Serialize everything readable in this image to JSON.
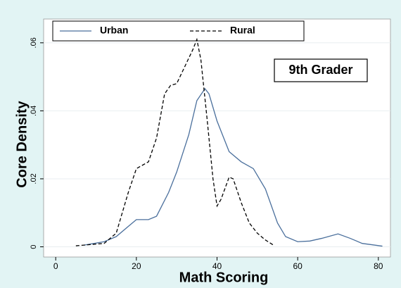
{
  "chart_data": {
    "type": "line",
    "xlabel": "Math Scoring",
    "ylabel": "Core Density",
    "annotation": "9th Grader",
    "xlim": [
      -3,
      83
    ],
    "ylim": [
      -0.003,
      0.067
    ],
    "xticks": [
      0,
      20,
      40,
      60,
      80
    ],
    "yticks": [
      0,
      {
        "value": 0.02,
        "label": ".02"
      },
      {
        "value": 0.04,
        "label": ".04"
      },
      {
        "value": 0.06,
        "label": ".06"
      }
    ],
    "grid": true,
    "legend": "top",
    "series": [
      {
        "name": "Urban",
        "color": "#4a6f9c",
        "dash": false,
        "x": [
          7,
          12,
          15,
          18,
          20,
          23,
          25,
          28,
          30,
          33,
          35,
          37,
          38,
          40,
          43,
          46,
          49,
          52,
          55,
          57,
          60,
          63,
          66,
          70,
          73,
          76,
          81
        ],
        "values": [
          0.0005,
          0.0015,
          0.003,
          0.006,
          0.008,
          0.008,
          0.009,
          0.016,
          0.022,
          0.033,
          0.043,
          0.0465,
          0.045,
          0.037,
          0.028,
          0.025,
          0.023,
          0.017,
          0.007,
          0.003,
          0.0015,
          0.0017,
          0.0025,
          0.0038,
          0.0025,
          0.001,
          0.0002
        ]
      },
      {
        "name": "Rural",
        "color": "#000000",
        "dash": true,
        "x": [
          5,
          8,
          12,
          15,
          18,
          20,
          23,
          25,
          27,
          28.5,
          30,
          32,
          34,
          35,
          36,
          37.5,
          39,
          40,
          41,
          43,
          44,
          46,
          48,
          50,
          52,
          54
        ],
        "values": [
          0.0003,
          0.0006,
          0.001,
          0.004,
          0.016,
          0.023,
          0.025,
          0.032,
          0.045,
          0.0475,
          0.048,
          0.053,
          0.058,
          0.061,
          0.055,
          0.038,
          0.02,
          0.012,
          0.014,
          0.0205,
          0.02,
          0.013,
          0.007,
          0.004,
          0.002,
          0.0005
        ]
      }
    ]
  }
}
